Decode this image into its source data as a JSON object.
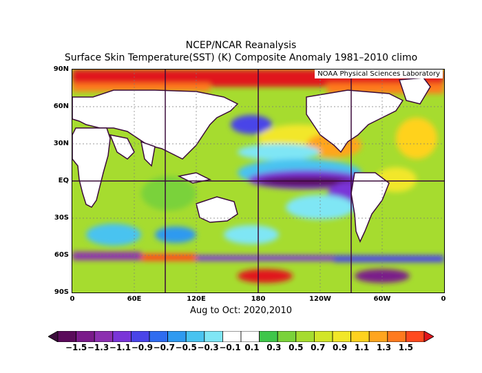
{
  "title_line1": "NCEP/NCAR Reanalysis",
  "title_line2": "Surface Skin Temperature(SST) (K) Composite Anomaly 1981–2010 climo",
  "credit": "NOAA Physical Sciences Laboratory",
  "subtitle": "Aug to Oct: 2020,2010",
  "y_ticks": [
    "90N",
    "60N",
    "30N",
    "EQ",
    "30S",
    "60S",
    "90S"
  ],
  "x_ticks": [
    "0",
    "60E",
    "120E",
    "180",
    "120W",
    "60W",
    "0"
  ],
  "colorbar": {
    "labels": [
      "−1.5",
      "−1.3",
      "−1.1",
      "−0.9",
      "−0.7",
      "−0.5",
      "−0.3",
      "−0.1",
      "0.1",
      "0.3",
      "0.5",
      "0.7",
      "0.9",
      "1.1",
      "1.3",
      "1.5"
    ],
    "colors": [
      "#3a0a3a",
      "#5a0a5a",
      "#7a1a8a",
      "#8c2fb0",
      "#7a35d8",
      "#4a44e8",
      "#2f6cf0",
      "#2f9af0",
      "#49c3f0",
      "#7fe6f5",
      "#ffffff",
      "#ffffff",
      "#3fc64a",
      "#7ad23a",
      "#a6dc2f",
      "#d2e629",
      "#f2e729",
      "#ffd21f",
      "#ffa51f",
      "#ff7a1f",
      "#ff4a1f",
      "#e1151b"
    ]
  }
}
